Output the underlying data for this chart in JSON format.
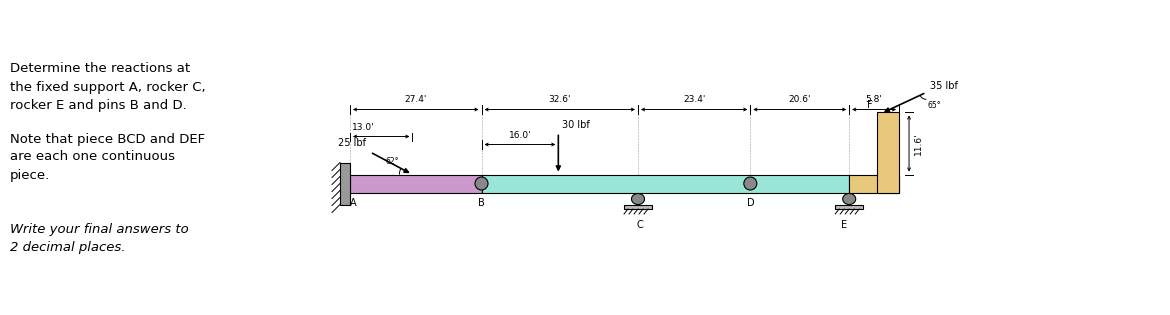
{
  "title_text": "Determine the reactions at\nthe fixed support A, rocker C,\nrocker E and pins B and D.",
  "note_text": "Note that piece BCD and DEF\nare each one continuous\npiece.",
  "footer_text": "Write your final answers to\n2 decimal places.",
  "bg_color": "#ffffff",
  "dim_27_4": "27.4'",
  "dim_32_6": "32.6'",
  "dim_23_4": "23.4'",
  "dim_20_6": "20.6'",
  "dim_5_8": "5.8'",
  "dim_13_0": "13.0'",
  "dim_16_0": "16.0'",
  "dim_11_6": "11.6'",
  "force_25": "25 lbf",
  "force_30": "30 lbf",
  "force_35": "35 lbf",
  "angle_62": "62°",
  "angle_65": "65°",
  "label_A": "A",
  "label_B": "B",
  "label_C": "C",
  "label_D": "D",
  "label_E": "E",
  "label_F": "F",
  "color_AB": "#cc99cc",
  "color_BDE": "#99e6d9",
  "color_EF": "#e8c87a",
  "color_wall": "#999999",
  "color_ground": "#bbbbbb",
  "color_support": "#888888"
}
